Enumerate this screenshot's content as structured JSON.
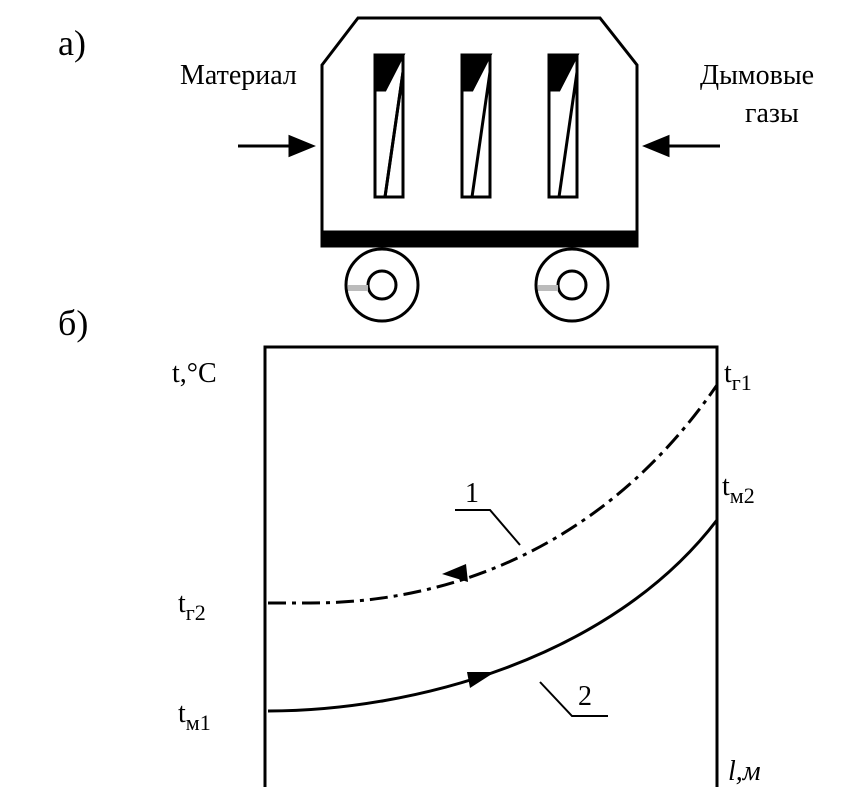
{
  "panel_a": {
    "label": "а)",
    "left_label": "Материал",
    "right_label": [
      "Дымовые",
      "газы"
    ]
  },
  "panel_b": {
    "label": "б)",
    "y_axis": "t,°C",
    "x_axis": "l,м",
    "curve_labels": [
      "1",
      "2"
    ],
    "points": {
      "tg1": {
        "base": "t",
        "sub": "г1"
      },
      "tm2": {
        "base": "t",
        "sub": "м2"
      },
      "tg2": {
        "base": "t",
        "sub": "г2"
      },
      "tm1": {
        "base": "t",
        "sub": "м1"
      }
    }
  }
}
